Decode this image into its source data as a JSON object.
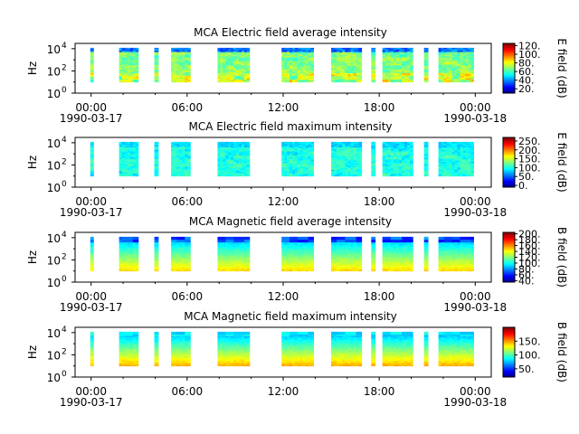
{
  "chart_data": [
    {
      "type": "heatmap",
      "title": "MCA  Electric field average intensity",
      "ylabel": "Hz",
      "colorbar_label": "E field (dB)",
      "colorbar_range": [
        10,
        125
      ],
      "colorbar_ticks": [
        "20.",
        "40.",
        "60.",
        "80.",
        "100.",
        "120."
      ],
      "colorbar_tick_values": [
        20,
        40,
        60,
        80,
        100,
        120
      ],
      "variant": "e_avg"
    },
    {
      "type": "heatmap",
      "title": "MCA  Electric field maximum intensity",
      "ylabel": "Hz",
      "colorbar_label": "E field (dB)",
      "colorbar_range": [
        -10,
        270
      ],
      "colorbar_ticks": [
        "0.",
        "50.",
        "100.",
        "150.",
        "200.",
        "250."
      ],
      "colorbar_tick_values": [
        0,
        50,
        100,
        150,
        200,
        250
      ],
      "variant": "e_max"
    },
    {
      "type": "heatmap",
      "title": "MCA  Magnetic field average intensity",
      "ylabel": "Hz",
      "colorbar_label": "B field (dB)",
      "colorbar_range": [
        35,
        205
      ],
      "colorbar_ticks": [
        "40.",
        "60.",
        "80.",
        "100.",
        "120.",
        "140.",
        "160.",
        "180.",
        "200."
      ],
      "colorbar_tick_values": [
        40,
        60,
        80,
        100,
        120,
        140,
        160,
        180,
        200
      ],
      "variant": "b_avg"
    },
    {
      "type": "heatmap",
      "title": "MCA  Magnetic field maximum intensity",
      "ylabel": "Hz",
      "colorbar_label": "B field (dB)",
      "colorbar_range": [
        20,
        200
      ],
      "colorbar_ticks": [
        "50.",
        "100.",
        "150."
      ],
      "colorbar_tick_values": [
        50,
        100,
        150
      ],
      "variant": "b_max"
    }
  ],
  "x_axis": {
    "ticks": [
      "00:00",
      "06:00",
      "12:00",
      "18:00",
      "00:00"
    ],
    "tick_hours": [
      0,
      6,
      12,
      18,
      24
    ],
    "minor_tick_hours": [
      2,
      4,
      8,
      10,
      14,
      16,
      20,
      22
    ],
    "range_hours": [
      -1,
      25
    ],
    "date_labels": [
      "1990-03-17",
      "1990-03-18"
    ]
  },
  "y_axis": {
    "scale": "log",
    "range": [
      1,
      30000
    ],
    "ticks": [
      {
        "base": "10",
        "exp": "0"
      },
      {
        "base": "10",
        "exp": "2"
      },
      {
        "base": "10",
        "exp": "4"
      }
    ],
    "tick_values": [
      1,
      100,
      10000
    ],
    "minor_tick_values": [
      10,
      1000
    ]
  },
  "data_intervals_hours": [
    [
      -0.05,
      0.15
    ],
    [
      1.75,
      2.95
    ],
    [
      3.95,
      4.2
    ],
    [
      5.0,
      6.2
    ],
    [
      7.9,
      9.9
    ],
    [
      11.9,
      13.9
    ],
    [
      15.0,
      16.9
    ],
    [
      17.5,
      17.75
    ],
    [
      18.2,
      20.1
    ],
    [
      20.8,
      21.05
    ],
    [
      21.7,
      23.9
    ]
  ]
}
